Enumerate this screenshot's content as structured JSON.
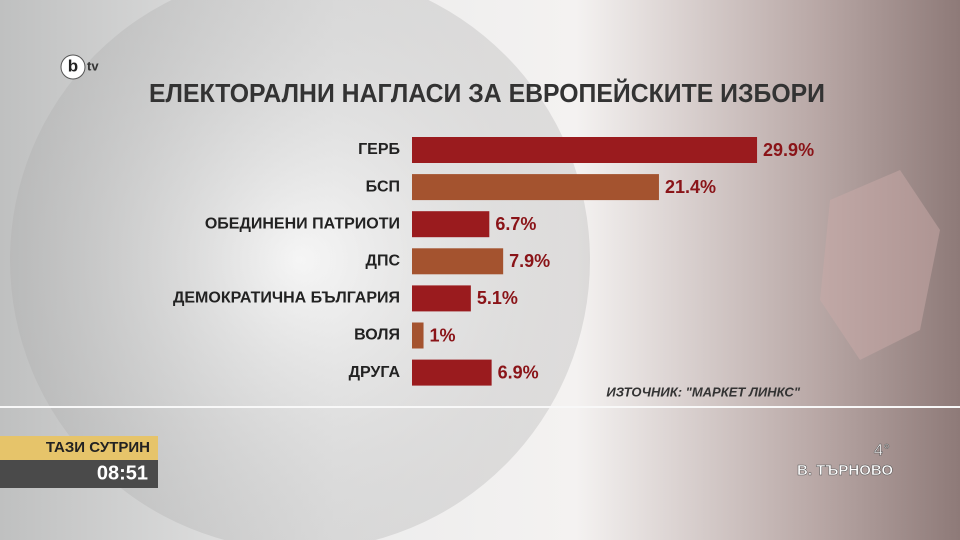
{
  "chart_data": {
    "type": "hbar",
    "title": "ЕЛЕКТОРАЛНИ НАГЛАСИ ЗА ЕВРОПЕЙСКИТЕ ИЗБОРИ",
    "categories": [
      "ГЕРБ",
      "БСП",
      "ОБЕДИНЕНИ ПАТРИОТИ",
      "ДПС",
      "ДЕМОКРАТИЧНА БЪЛГАРИЯ",
      "ВОЛЯ",
      "ДРУГА"
    ],
    "values": [
      29.9,
      21.4,
      6.7,
      7.9,
      5.1,
      1,
      6.9
    ],
    "value_labels": [
      "29.9%",
      "21.4%",
      "6.7%",
      "7.9%",
      "5.1%",
      "1%",
      "6.9%"
    ],
    "colors": [
      "#9a1b1e",
      "#a4532f",
      "#9a1b1e",
      "#a4532f",
      "#9a1b1e",
      "#a4532f",
      "#9a1b1e"
    ],
    "source": "ИЗТОЧНИК: \"МАРКЕТ ЛИНКС\""
  },
  "overlay": {
    "logo": "tv",
    "logo_letter": "b",
    "show": "ТАЗИ СУТРИН",
    "time": "08:51",
    "temperature": "4°",
    "city": "В. ТЪРНОВО"
  }
}
